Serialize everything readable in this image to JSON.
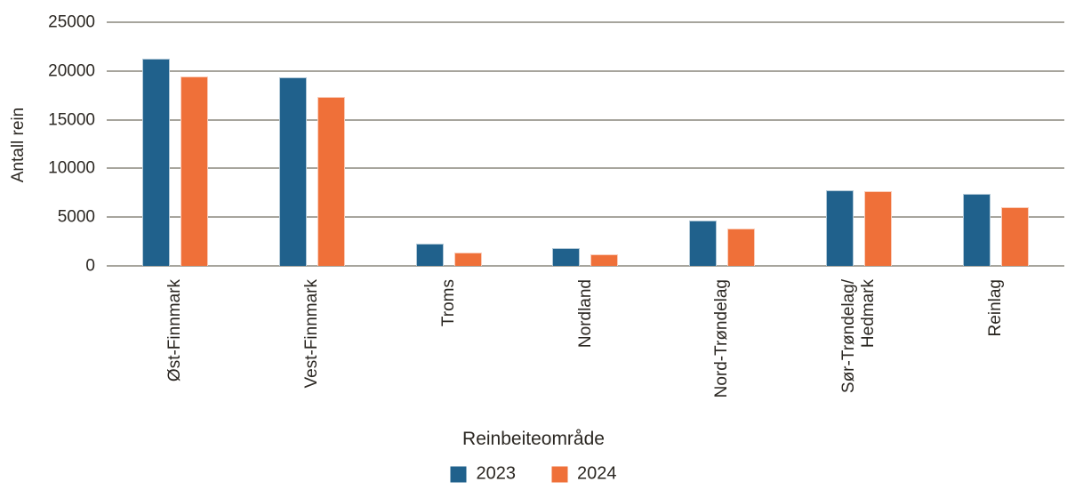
{
  "chart_data": {
    "type": "bar",
    "title": "",
    "xlabel": "Reinbeiteområde",
    "ylabel": "Antall rein",
    "categories": [
      "Øst-Finnmark",
      "Vest-Finnmark",
      "Troms",
      "Nordland",
      "Nord-Trøndelag",
      "Sør-Trøndelag/\nHedmark",
      "Reinlag"
    ],
    "series": [
      {
        "name": "2023",
        "color": "#20618C",
        "values": [
          21300,
          19300,
          2300,
          1850,
          4650,
          7800,
          7350
        ]
      },
      {
        "name": "2024",
        "color": "#EF7039",
        "values": [
          19400,
          17350,
          1400,
          1200,
          3800,
          7650,
          6000
        ]
      }
    ],
    "y_axis": {
      "min": 0,
      "max": 25000,
      "tick_step": 5000,
      "ticks": [
        "0",
        "5000",
        "10000",
        "15000",
        "20000",
        "25000"
      ]
    },
    "grid": "horizontal-gridlines-behind-bars",
    "legend_position": "bottom-center",
    "colors": {
      "gridline": "#a7a59d",
      "text": "#2b2722",
      "background": "#ffffff"
    }
  }
}
